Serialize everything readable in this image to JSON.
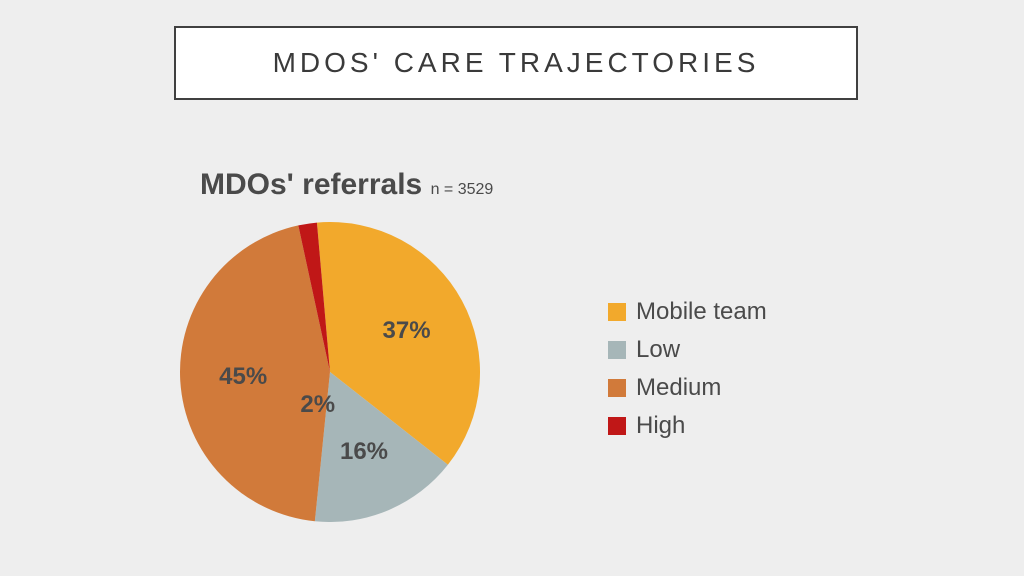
{
  "page": {
    "background_color": "#eeeeee",
    "title": "MDOS' CARE TRAJECTORIES",
    "title_box": {
      "border_color": "#404040",
      "bg_color": "#ffffff",
      "text_color": "#3a3a3a",
      "font_size": 28,
      "letter_spacing": 4
    }
  },
  "chart": {
    "type": "pie",
    "title": "MDOs' referrals",
    "subtitle": "n = 3529",
    "title_fontsize": 30,
    "subtitle_fontsize": 16,
    "text_color": "#4a4a4a",
    "radius": 150,
    "start_angle": -5,
    "label_fontsize": 24,
    "slices": [
      {
        "label": "Mobile team",
        "value": 37,
        "display": "37%",
        "color": "#f2a92c"
      },
      {
        "label": "Low",
        "value": 16,
        "display": "16%",
        "color": "#a6b6b8"
      },
      {
        "label": "Medium",
        "value": 45,
        "display": "45%",
        "color": "#d17a3a"
      },
      {
        "label": "High",
        "value": 2,
        "display": "2%",
        "color": "#c01717"
      }
    ],
    "legend": {
      "swatch_size": 18,
      "font_size": 24
    }
  }
}
